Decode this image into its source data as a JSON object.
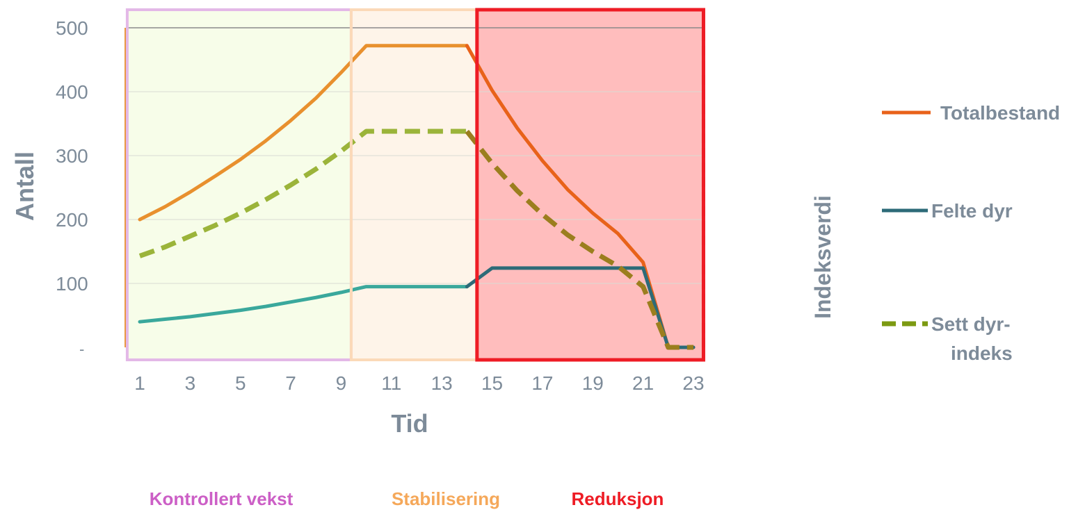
{
  "chart_data": {
    "type": "line",
    "title": "",
    "xlabel": "Tid",
    "ylabel": "Antall",
    "ylabel_secondary": "Indeksverdi",
    "x": [
      1,
      2,
      3,
      4,
      5,
      6,
      7,
      8,
      9,
      10,
      11,
      12,
      13,
      14,
      15,
      16,
      17,
      18,
      19,
      20,
      21,
      22,
      23
    ],
    "x_tick_labels": [
      "1",
      "3",
      "5",
      "7",
      "9",
      "11",
      "13",
      "15",
      "17",
      "19",
      "21",
      "23"
    ],
    "x_tick_values": [
      1,
      3,
      5,
      7,
      9,
      11,
      13,
      15,
      17,
      19,
      21,
      23
    ],
    "y_tick_labels": [
      "-",
      "100",
      "200",
      "300",
      "400",
      "500"
    ],
    "y_tick_values": [
      0,
      100,
      200,
      300,
      400,
      500
    ],
    "ylim": [
      0,
      500
    ],
    "grid": true,
    "legend_position": "right",
    "series": [
      {
        "name": "Totalbestand",
        "color": "#e8902e",
        "color_reduction": "#e8621a",
        "style": "solid",
        "values": [
          200,
          220,
          243,
          268,
          294,
          323,
          355,
          390,
          430,
          472,
          472,
          472,
          472,
          472,
          402,
          343,
          292,
          247,
          210,
          178,
          133,
          0,
          0
        ]
      },
      {
        "name": "Felte dyr",
        "color": "#3aa89c",
        "color_reduction": "#2d6b78",
        "style": "solid",
        "values": [
          40,
          44,
          48,
          53,
          58,
          64,
          71,
          78,
          86,
          95,
          95,
          95,
          95,
          95,
          124,
          124,
          124,
          124,
          124,
          124,
          124,
          0,
          0
        ]
      },
      {
        "name": "Sett dyr-indeks",
        "color": "#9bb43a",
        "color_reduction": "#9b7e1e",
        "style": "dashed",
        "values": [
          143,
          157,
          174,
          191,
          210,
          231,
          254,
          279,
          307,
          338,
          338,
          338,
          338,
          338,
          288,
          245,
          208,
          176,
          150,
          127,
          95,
          0,
          0
        ]
      }
    ],
    "phases": [
      {
        "label": "Kontrollert vekst",
        "x_start": 0.5,
        "x_end": 9.4,
        "fill": "#f7fde9",
        "border": "#e3b8e7",
        "text_color": "#cc5fc6"
      },
      {
        "label": "Stabilisering",
        "x_start": 9.4,
        "x_end": 14.4,
        "fill": "#fef4e9",
        "border": "#fbd9b8",
        "text_color": "#f5a85a"
      },
      {
        "label": "Reduksjon",
        "x_start": 14.4,
        "x_end": 23.4,
        "fill": "#ffbdbd",
        "border": "#ee1c25",
        "text_color": "#ee1c25"
      }
    ]
  }
}
